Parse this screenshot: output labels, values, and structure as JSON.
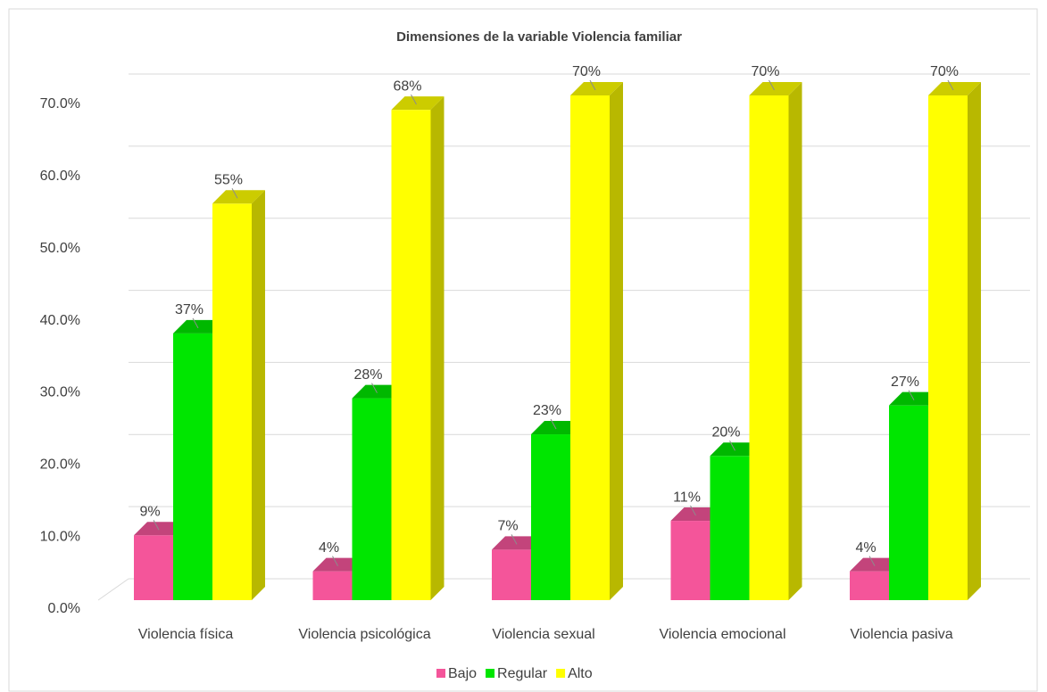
{
  "chart_data": {
    "type": "bar3d",
    "title": "Dimensiones de la variable Violencia familiar",
    "categories": [
      "Violencia física",
      "Violencia psicológica",
      "Violencia sexual",
      "Violencia emocional",
      "Violencia pasiva"
    ],
    "series": [
      {
        "name": "Bajo",
        "color": "#f4559a",
        "values": [
          9,
          4,
          7,
          11,
          4
        ],
        "value_labels": [
          "9%",
          "4%",
          "7%",
          "11%",
          "4%"
        ]
      },
      {
        "name": "Regular",
        "color": "#00e600",
        "values": [
          37,
          28,
          23,
          20,
          27
        ],
        "value_labels": [
          "37%",
          "28%",
          "23%",
          "20%",
          "27%"
        ]
      },
      {
        "name": "Alto",
        "color": "#ffff00",
        "values": [
          55,
          68,
          70,
          70,
          70
        ],
        "value_labels": [
          "55%",
          "68%",
          "70%",
          "70%",
          "70%"
        ]
      }
    ],
    "ylim": [
      0,
      70
    ],
    "yticks": [
      {
        "value": 0,
        "label": "0.0%"
      },
      {
        "value": 10,
        "label": "10.0%"
      },
      {
        "value": 20,
        "label": "20.0%"
      },
      {
        "value": 30,
        "label": "30.0%"
      },
      {
        "value": 40,
        "label": "40.0%"
      },
      {
        "value": 50,
        "label": "50.0%"
      },
      {
        "value": 60,
        "label": "60.0%"
      },
      {
        "value": 70,
        "label": "70.0%"
      }
    ],
    "grid": true,
    "legend": "bottom"
  }
}
